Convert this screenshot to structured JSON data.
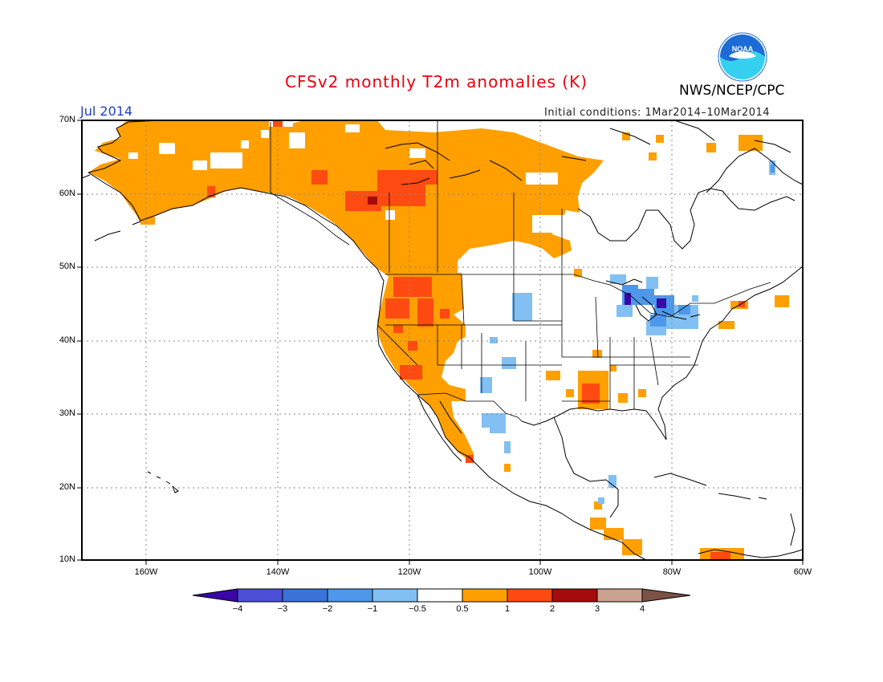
{
  "title": "CFSv2 monthly T2m anomalies (K)",
  "agency": "NWS/NCEP/CPC",
  "logo_text": "NOAA",
  "month": "Jul 2014",
  "initial_conditions": "Initial conditions: 1Mar2014–10Mar2014",
  "lat_labels": [
    "70N",
    "60N",
    "50N",
    "40N",
    "30N",
    "20N",
    "10N"
  ],
  "lon_labels": [
    "160W",
    "140W",
    "120W",
    "100W",
    "80W",
    "60W"
  ],
  "colorbar_labels": [
    "−4",
    "−3",
    "−2",
    "−1",
    "−0.5",
    "0.5",
    "1",
    "2",
    "3",
    "4"
  ],
  "colors": {
    "neg4": "#3a06a8",
    "neg3": "#4a4fd6",
    "neg2": "#3a73d8",
    "neg1": "#4d98ea",
    "neg05": "#82bff2",
    "neutral": "#ffffff",
    "pos05": "#ff9f00",
    "pos1": "#ff4a12",
    "pos2": "#a60b0b",
    "pos3": "#c9a290",
    "pos4": "#7b5245",
    "title": "#e8000b",
    "month": "#2040d0",
    "logo_blue": "#1d6bd6",
    "logo_cyan": "#35d0f0"
  },
  "map_extent": {
    "lon_min": -170,
    "lon_max": -60,
    "lat_min": 10,
    "lat_max": 70
  }
}
